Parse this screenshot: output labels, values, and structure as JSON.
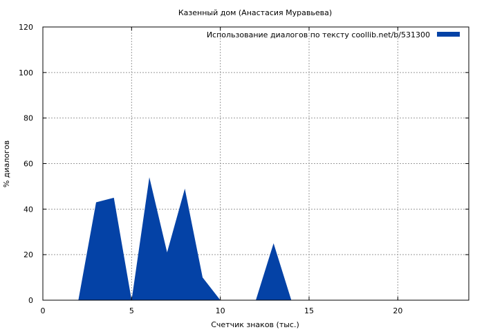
{
  "chart_data": {
    "type": "area",
    "title": "Казенный дом (Анастасия Муравьева)",
    "xlabel": "Счетчик знаков (тыс.)",
    "ylabel": "% диалогов",
    "xlim": [
      0,
      24
    ],
    "ylim": [
      0,
      120
    ],
    "xticks": [
      0,
      5,
      10,
      15,
      20
    ],
    "yticks": [
      0,
      20,
      40,
      60,
      80,
      100,
      120
    ],
    "grid": true,
    "legend_position": "top-right",
    "colors": {
      "series": "#0442a6",
      "grid": "#999999",
      "axis": "#000000"
    },
    "series": [
      {
        "name": "Использование диалогов по тексту  coollib.net/b/531300",
        "x": [
          0,
          1,
          2,
          3,
          4,
          5,
          6,
          7,
          8,
          9,
          10,
          11,
          12,
          13,
          14,
          15,
          16,
          17,
          18,
          19,
          20,
          21,
          22,
          23
        ],
        "y": [
          0,
          0,
          0,
          43,
          45,
          0,
          54,
          21,
          49,
          10,
          0,
          0,
          0,
          25,
          0,
          0,
          0,
          0,
          0,
          0,
          0,
          0,
          0,
          0
        ]
      }
    ]
  }
}
